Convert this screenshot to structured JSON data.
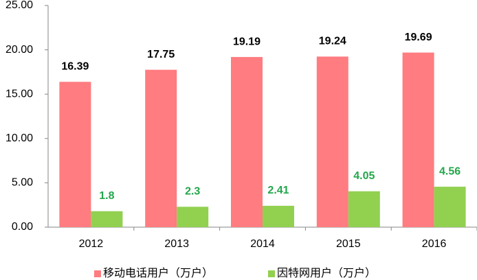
{
  "chart_data": {
    "type": "bar",
    "categories": [
      "2012",
      "2013",
      "2014",
      "2015",
      "2016"
    ],
    "series": [
      {
        "name": "移动电话用户（万户）",
        "color": "#ff7c80",
        "label_color": "#000000",
        "values": [
          16.39,
          17.75,
          19.19,
          19.24,
          19.69
        ]
      },
      {
        "name": "因特网用户（万户）",
        "color": "#92d050",
        "label_color": "#22a64a",
        "values": [
          1.8,
          2.3,
          2.41,
          4.05,
          4.56
        ]
      }
    ],
    "ylim": [
      0,
      25
    ],
    "yticks": [
      {
        "value": 0,
        "label": "0.00"
      },
      {
        "value": 5,
        "label": "5.00"
      },
      {
        "value": 10,
        "label": "10.00"
      },
      {
        "value": 15,
        "label": "15.00"
      },
      {
        "value": 20,
        "label": "20.00"
      },
      {
        "value": 25,
        "label": "25.00"
      }
    ],
    "grid": false,
    "legend": "bottom"
  }
}
